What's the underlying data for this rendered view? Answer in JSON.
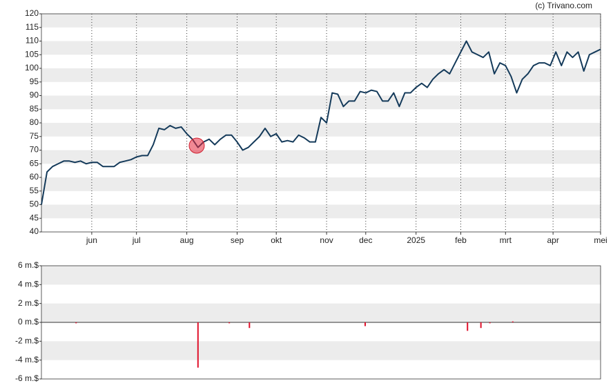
{
  "credit": "(c) Trivano.com",
  "chart_data": [
    {
      "type": "line",
      "color": "#143a5a",
      "values": [
        50,
        62,
        64,
        65,
        66,
        66,
        65.5,
        66,
        65,
        65.5,
        65.5,
        64,
        64,
        64,
        65.5,
        66,
        66.5,
        67.5,
        68,
        68,
        72,
        78,
        77.5,
        79,
        78,
        78.5,
        76,
        74,
        71,
        73,
        74,
        72,
        74,
        75.5,
        75.5,
        73,
        70,
        71,
        73,
        75,
        78,
        75,
        76,
        73,
        73.5,
        73,
        75.5,
        74.5,
        73,
        73,
        82,
        80,
        91,
        90.5,
        86,
        88,
        88,
        91.5,
        91,
        92,
        91.5,
        88,
        88,
        91,
        86,
        91,
        91,
        93,
        94.5,
        93,
        96,
        98,
        99.5,
        98,
        102,
        106,
        110,
        106,
        105,
        104,
        106,
        98,
        102,
        101,
        97,
        91,
        96,
        98,
        101,
        102,
        102,
        101,
        106,
        101,
        106,
        104,
        106,
        99,
        105,
        106,
        107
      ],
      "xlim": [
        0,
        100
      ],
      "xticks": [
        {
          "value": 9,
          "label": "jun"
        },
        {
          "value": 17,
          "label": "jul"
        },
        {
          "value": 26,
          "label": "aug"
        },
        {
          "value": 35,
          "label": "sep"
        },
        {
          "value": 42,
          "label": "okt"
        },
        {
          "value": 51,
          "label": "nov"
        },
        {
          "value": 58,
          "label": "dec"
        },
        {
          "value": 67,
          "label": "2025"
        },
        {
          "value": 75,
          "label": "feb"
        },
        {
          "value": 83,
          "label": "mrt"
        },
        {
          "value": 91.5,
          "label": "apr"
        },
        {
          "value": 100,
          "label": "mei"
        }
      ],
      "ylim": [
        40,
        120
      ],
      "yticks": [
        40,
        45,
        50,
        55,
        60,
        65,
        70,
        75,
        80,
        85,
        90,
        95,
        100,
        105,
        110,
        115,
        120
      ],
      "grid": true
    },
    {
      "type": "bar",
      "color": "#e0102a",
      "x": [
        6.2,
        28,
        33.6,
        37.2,
        57.9,
        76.2,
        78.6,
        80.2,
        84.3
      ],
      "values": [
        -0.1,
        -4.8,
        -0.1,
        -0.6,
        -0.4,
        -0.9,
        -0.6,
        -0.1,
        0.1
      ],
      "xlim": [
        0,
        100
      ],
      "ylim": [
        -6,
        6
      ],
      "yticks": [
        {
          "value": -6,
          "label": "-6 m.$"
        },
        {
          "value": -4,
          "label": "-4 m.$"
        },
        {
          "value": -2,
          "label": "-2 m.$"
        },
        {
          "value": 0,
          "label": "0 m.$"
        },
        {
          "value": 2,
          "label": "2 m.$"
        },
        {
          "value": 4,
          "label": "4 m.$"
        },
        {
          "value": 6,
          "label": "6 m.$"
        }
      ],
      "grid": false
    }
  ]
}
